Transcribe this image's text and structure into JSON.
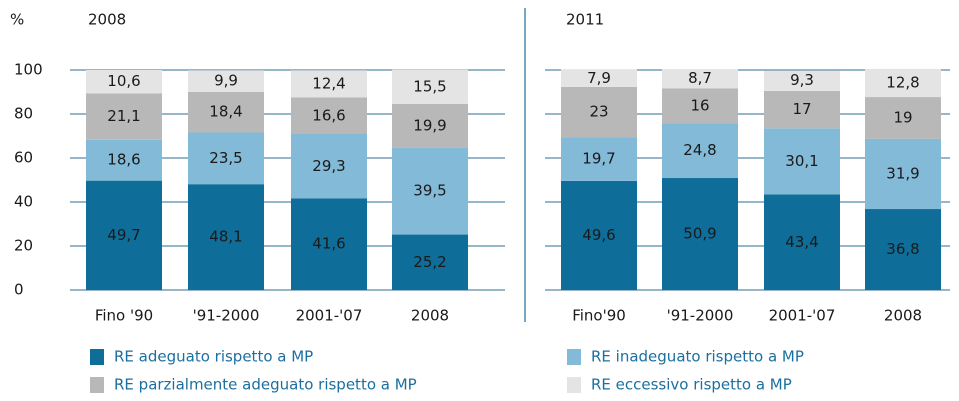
{
  "chart_data": {
    "type": "bar",
    "stacked": true,
    "ylabel": "%",
    "ylim": [
      0,
      104
    ],
    "yticks": [
      0,
      20,
      40,
      60,
      80,
      100
    ],
    "grid": true,
    "legend": "bottom",
    "series": [
      {
        "name": "RE adeguato rispetto a MP",
        "color": "#0e6e99"
      },
      {
        "name": "RE inadeguato rispetto a MP",
        "color": "#82bad7"
      },
      {
        "name": "RE parzialmente adeguato rispetto a MP",
        "color": "#b8b8b8"
      },
      {
        "name": "RE eccessivo rispetto a MP",
        "color": "#e4e4e4"
      }
    ],
    "panels": [
      {
        "title": "2008",
        "categories": [
          "Fino '90",
          "'91-2000",
          "2001-'07",
          "2008"
        ],
        "series": [
          {
            "values": [
              49.7,
              48.1,
              41.6,
              25.2
            ],
            "value_labels": [
              "49,7",
              "48,1",
              "41,6",
              "25,2"
            ]
          },
          {
            "values": [
              18.6,
              23.5,
              29.3,
              39.5
            ],
            "value_labels": [
              "18,6",
              "23,5",
              "29,3",
              "39,5"
            ]
          },
          {
            "values": [
              21.1,
              18.4,
              16.6,
              19.9
            ],
            "value_labels": [
              "21,1",
              "18,4",
              "16,6",
              "19,9"
            ]
          },
          {
            "values": [
              10.6,
              9.9,
              12.4,
              15.5
            ],
            "value_labels": [
              "10,6",
              "9,9",
              "12,4",
              "15,5"
            ]
          }
        ]
      },
      {
        "title": "2011",
        "categories": [
          "Fino'90",
          "'91-2000",
          "2001-'07",
          "2008"
        ],
        "series": [
          {
            "values": [
              49.6,
              50.9,
              43.4,
              36.8
            ],
            "value_labels": [
              "49,6",
              "50,9",
              "43,4",
              "36,8"
            ]
          },
          {
            "values": [
              19.7,
              24.8,
              30.1,
              31.9
            ],
            "value_labels": [
              "19,7",
              "24,8",
              "30,1",
              "31,9"
            ]
          },
          {
            "values": [
              23,
              16,
              17,
              19
            ],
            "value_labels": [
              "23",
              "16",
              "17",
              "19"
            ]
          },
          {
            "values": [
              7.9,
              8.7,
              9.3,
              12.8
            ],
            "value_labels": [
              "7,9",
              "8,7",
              "9,3",
              "12,8"
            ]
          }
        ]
      }
    ]
  }
}
